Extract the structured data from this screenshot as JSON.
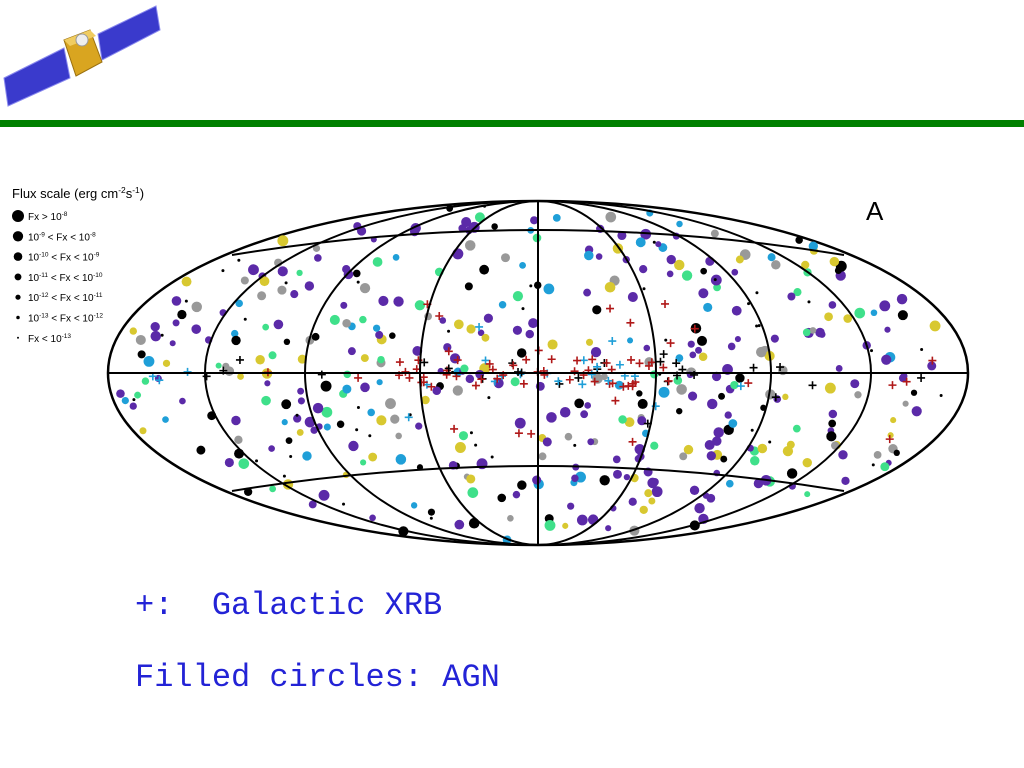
{
  "figure": {
    "panel_label": "A",
    "flux_scale": {
      "title": [
        "Flux scale (erg cm",
        "-2",
        "s",
        "-1",
        ")"
      ],
      "items": [
        [
          "Fx > 10",
          "-8"
        ],
        [
          "10",
          "-9",
          " < Fx < 10",
          "-8"
        ],
        [
          "10",
          "-10",
          " < Fx < 10",
          "-9"
        ],
        [
          "10",
          "-11",
          " < Fx < 10",
          "-10"
        ],
        [
          "10",
          "-12",
          " < Fx < 10",
          "-11"
        ],
        [
          "10",
          "-13",
          " < Fx < 10",
          "-12"
        ],
        [
          "Fx < 10",
          "-13"
        ]
      ]
    }
  },
  "notes": [
    "+:  Galactic XRB",
    "Filled circles: AGN"
  ]
}
